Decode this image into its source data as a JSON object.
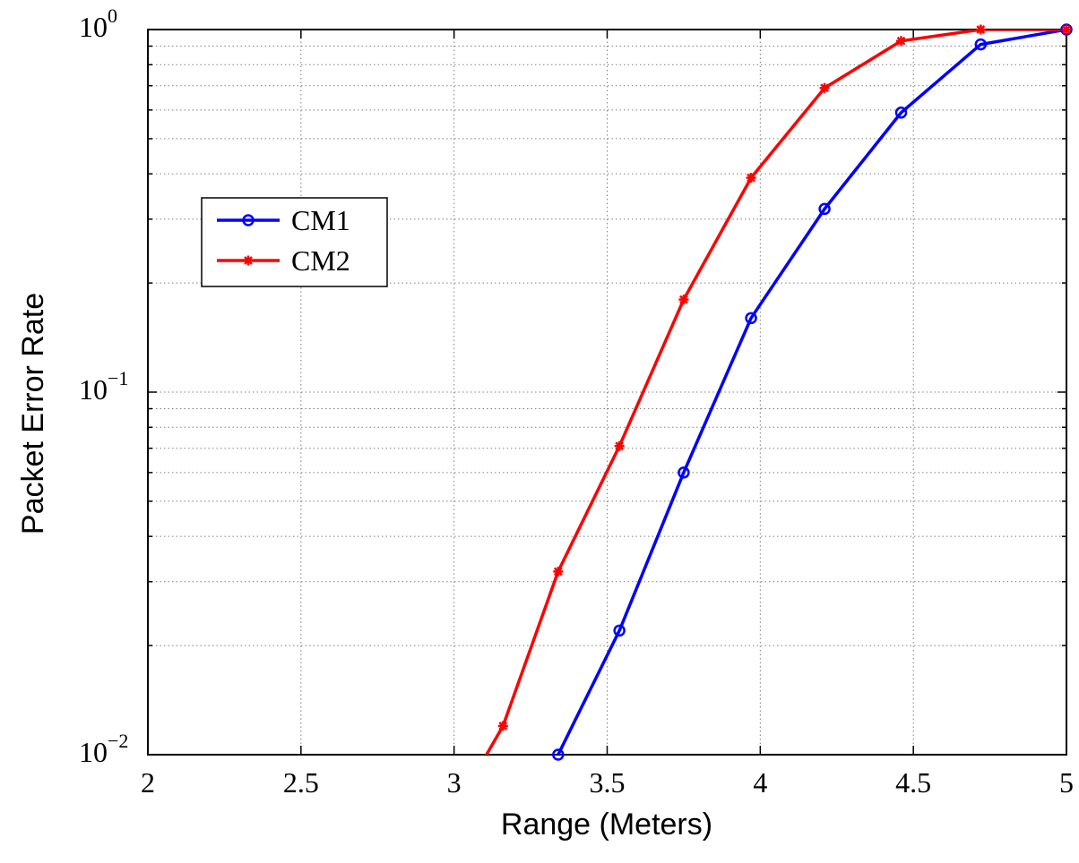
{
  "chart_data": {
    "type": "line",
    "title": "",
    "xlabel": "Range (Meters)",
    "ylabel": "Packet Error Rate",
    "xlim": [
      2,
      5
    ],
    "ylim": [
      0.01,
      1
    ],
    "yscale": "log",
    "grid": true,
    "legend_position": "upper-left",
    "x_ticks": [
      {
        "value": 2,
        "label": "2"
      },
      {
        "value": 2.5,
        "label": "2.5"
      },
      {
        "value": 3,
        "label": "3"
      },
      {
        "value": 3.5,
        "label": "3.5"
      },
      {
        "value": 4,
        "label": "4"
      },
      {
        "value": 4.5,
        "label": "4.5"
      },
      {
        "value": 5,
        "label": "5"
      }
    ],
    "y_ticks": [
      {
        "value": 0.01,
        "base": "10",
        "exp": "−2"
      },
      {
        "value": 0.1,
        "base": "10",
        "exp": "−1"
      },
      {
        "value": 1,
        "base": "10",
        "exp": "0"
      }
    ],
    "series": [
      {
        "name": "CM1",
        "color": "#0000ff",
        "marker": "circle",
        "x": [
          3.34,
          3.54,
          3.75,
          3.97,
          4.21,
          4.46,
          4.72,
          5.0
        ],
        "y": [
          0.01,
          0.022,
          0.06,
          0.16,
          0.32,
          0.59,
          0.91,
          1.0
        ]
      },
      {
        "name": "CM2",
        "color": "#ff0000",
        "marker": "asterisk",
        "x": [
          3.1,
          3.16,
          3.34,
          3.54,
          3.75,
          3.97,
          4.21,
          4.46,
          4.72,
          5.0
        ],
        "y": [
          0.0098,
          0.012,
          0.032,
          0.071,
          0.18,
          0.39,
          0.69,
          0.93,
          1.0,
          1.0
        ]
      }
    ]
  }
}
